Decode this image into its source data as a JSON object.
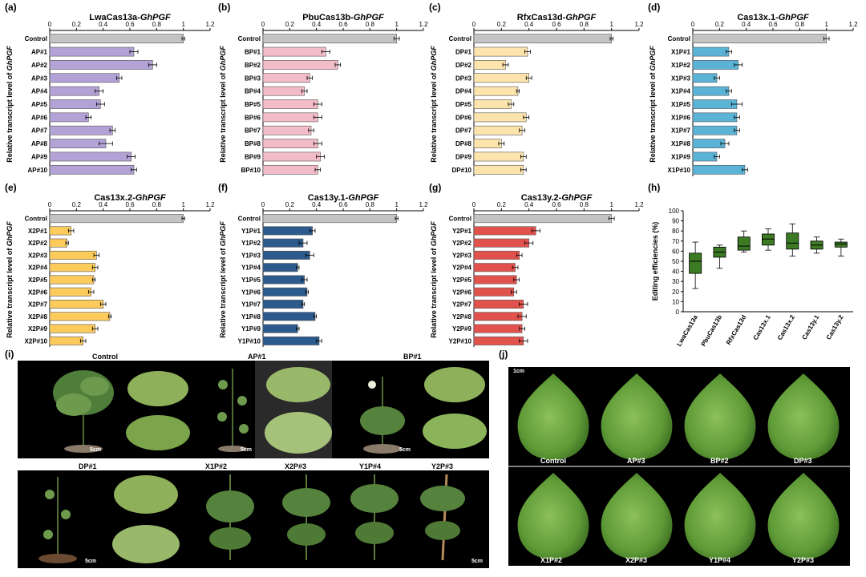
{
  "panel_letters": [
    "(a)",
    "(b)",
    "(c)",
    "(d)",
    "(e)",
    "(f)",
    "(g)",
    "(h)",
    "(i)",
    "(j)"
  ],
  "y_axis_label_prefix": "Relative transcript level of ",
  "gene": "GhPGF",
  "x_ticks": [
    "0",
    "0.2",
    "0.4",
    "0.6",
    "0.8",
    "1",
    "1.2"
  ],
  "colors": {
    "control": "#c4c4c4",
    "a": "#b3a2d6",
    "b": "#f2bcc8",
    "c": "#fde4ad",
    "d": "#5bb3d6",
    "e": "#fccb5c",
    "f": "#2c5a8c",
    "g": "#e2524c",
    "box": "#3c7a24",
    "photo_bg": "#000000",
    "boll": "#7aac4a"
  },
  "chart_data": [
    {
      "type": "bar",
      "orientation": "horizontal",
      "title_prefix": "LwaCas13a-",
      "title_gene": "GhPGF",
      "categories": [
        "Control",
        "AP#1",
        "AP#2",
        "AP#3",
        "AP#4",
        "AP#5",
        "AP#6",
        "AP#7",
        "AP#8",
        "AP#9",
        "AP#10"
      ],
      "values": [
        1.0,
        0.63,
        0.77,
        0.52,
        0.37,
        0.38,
        0.29,
        0.47,
        0.42,
        0.61,
        0.63
      ],
      "errors": [
        0.01,
        0.03,
        0.03,
        0.02,
        0.03,
        0.03,
        0.02,
        0.02,
        0.05,
        0.03,
        0.02
      ],
      "xlim": [
        0,
        1.2
      ]
    },
    {
      "type": "bar",
      "orientation": "horizontal",
      "title_prefix": "PbuCas13b-",
      "title_gene": "GhPGF",
      "categories": [
        "Control",
        "BP#1",
        "BP#2",
        "BP#3",
        "BP#4",
        "BP#5",
        "BP#6",
        "BP#7",
        "BP#8",
        "BP#9",
        "BP#10"
      ],
      "values": [
        1.0,
        0.47,
        0.56,
        0.35,
        0.31,
        0.41,
        0.41,
        0.36,
        0.41,
        0.43,
        0.41
      ],
      "errors": [
        0.02,
        0.03,
        0.02,
        0.02,
        0.02,
        0.03,
        0.03,
        0.02,
        0.03,
        0.03,
        0.02
      ],
      "xlim": [
        0,
        1.2
      ]
    },
    {
      "type": "bar",
      "orientation": "horizontal",
      "title_prefix": "RfxCas13d-",
      "title_gene": "GhPGF",
      "categories": [
        "Control",
        "DP#1",
        "DP#2",
        "DP#3",
        "DP#4",
        "DP#5",
        "DP#6",
        "DP#7",
        "DP#8",
        "DP#9",
        "DP#10"
      ],
      "values": [
        1.0,
        0.39,
        0.23,
        0.4,
        0.32,
        0.27,
        0.38,
        0.35,
        0.2,
        0.36,
        0.36
      ],
      "errors": [
        0.01,
        0.02,
        0.02,
        0.02,
        0.01,
        0.02,
        0.02,
        0.02,
        0.02,
        0.02,
        0.02
      ],
      "xlim": [
        0,
        1.2
      ]
    },
    {
      "type": "bar",
      "orientation": "horizontal",
      "title_prefix": "Cas13x.1-",
      "title_gene": "GhPGF",
      "categories": [
        "Control",
        "X1P#1",
        "X1P#2",
        "X1P#3",
        "X1P#4",
        "X1P#5",
        "X1P#6",
        "X1P#7",
        "X1P#8",
        "X1P#9",
        "X1P#10"
      ],
      "values": [
        1.0,
        0.27,
        0.34,
        0.18,
        0.27,
        0.33,
        0.33,
        0.33,
        0.24,
        0.18,
        0.39
      ],
      "errors": [
        0.02,
        0.02,
        0.03,
        0.02,
        0.02,
        0.04,
        0.02,
        0.02,
        0.03,
        0.02,
        0.02
      ],
      "xlim": [
        0,
        1.2
      ]
    },
    {
      "type": "bar",
      "orientation": "horizontal",
      "title_prefix": "Cas13x.2-",
      "title_gene": "GhPGF",
      "categories": [
        "Control",
        "X2P#1",
        "X2P#2",
        "X2P#3",
        "X2P#4",
        "X2P#5",
        "X2P#6",
        "X2P#7",
        "X2P#8",
        "X2P#9",
        "X2P#10"
      ],
      "values": [
        1.0,
        0.16,
        0.13,
        0.35,
        0.34,
        0.33,
        0.31,
        0.4,
        0.45,
        0.34,
        0.25
      ],
      "errors": [
        0.01,
        0.02,
        0.01,
        0.02,
        0.02,
        0.01,
        0.02,
        0.02,
        0.01,
        0.02,
        0.02
      ],
      "xlim": [
        0,
        1.2
      ]
    },
    {
      "type": "bar",
      "orientation": "horizontal",
      "title_prefix": "Cas13y.1-",
      "title_gene": "GhPGF",
      "categories": [
        "Control",
        "Y1P#1",
        "Y1P#2",
        "Y1P#3",
        "Y1P#4",
        "Y1P#5",
        "Y1P#6",
        "Y1P#7",
        "Y1P#8",
        "Y1P#9",
        "Y1P#10"
      ],
      "values": [
        1.0,
        0.37,
        0.3,
        0.35,
        0.26,
        0.31,
        0.33,
        0.3,
        0.39,
        0.26,
        0.42
      ],
      "errors": [
        0.01,
        0.02,
        0.03,
        0.03,
        0.01,
        0.02,
        0.01,
        0.01,
        0.01,
        0.01,
        0.02
      ],
      "xlim": [
        0,
        1.2
      ]
    },
    {
      "type": "bar",
      "orientation": "horizontal",
      "title_prefix": "Cas13y.2-",
      "title_gene": "GhPGF",
      "categories": [
        "Control",
        "Y2P#1",
        "Y2P#2",
        "Y2P#3",
        "Y2P#4",
        "Y2P#5",
        "Y2P#6",
        "Y2P#7",
        "Y2P#8",
        "Y2P#9",
        "Y2P#10"
      ],
      "values": [
        1.0,
        0.45,
        0.4,
        0.33,
        0.3,
        0.31,
        0.29,
        0.36,
        0.35,
        0.35,
        0.36
      ],
      "errors": [
        0.02,
        0.03,
        0.03,
        0.02,
        0.02,
        0.02,
        0.02,
        0.03,
        0.03,
        0.02,
        0.03
      ],
      "xlim": [
        0,
        1.2
      ]
    },
    {
      "type": "box",
      "ylabel": "Editing efficiencies (%)",
      "ylim": [
        0,
        100
      ],
      "y_ticks": [
        "0",
        "10",
        "20",
        "30",
        "40",
        "50",
        "60",
        "70",
        "80",
        "90",
        "100"
      ],
      "categories": [
        "LwaCas13a",
        "PbuCas13b",
        "RfxCas13d",
        "Cas13x.1",
        "Cas13x.2",
        "Cas13y.1",
        "Cas13y.2"
      ],
      "boxes": [
        {
          "min": 23,
          "q1": 38,
          "median": 50,
          "q3": 58,
          "max": 69
        },
        {
          "min": 43,
          "q1": 54,
          "median": 59,
          "q3": 64,
          "max": 66
        },
        {
          "min": 59,
          "q1": 61,
          "median": 65,
          "q3": 74,
          "max": 80
        },
        {
          "min": 61,
          "q1": 66,
          "median": 72,
          "q3": 77,
          "max": 82
        },
        {
          "min": 55,
          "q1": 62,
          "median": 68,
          "q3": 78,
          "max": 87
        },
        {
          "min": 58,
          "q1": 62,
          "median": 66,
          "q3": 70,
          "max": 74
        },
        {
          "min": 55,
          "q1": 64,
          "median": 67,
          "q3": 69,
          "max": 72
        }
      ]
    }
  ],
  "panel_i": {
    "top_labels": [
      "Control",
      "AP#1",
      "BP#1"
    ],
    "bottom_labels": [
      "DP#1",
      "X1P#2",
      "X2P#3",
      "Y1P#4",
      "Y2P#3"
    ],
    "scale_label": "5cm"
  },
  "panel_j": {
    "scale_label": "1cm",
    "top_labels": [
      "Control",
      "AP#3",
      "BP#2",
      "DP#3"
    ],
    "bottom_labels": [
      "X1P#2",
      "X2P#3",
      "Y1P#4",
      "Y2P#3"
    ]
  }
}
